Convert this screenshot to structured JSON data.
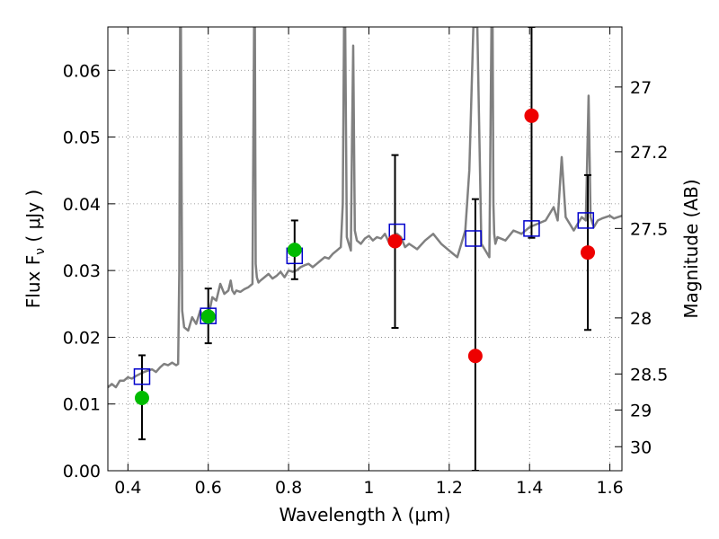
{
  "chart_data": {
    "type": "scatter",
    "xlabel": "Wavelength  λ (μm)",
    "ylabel": "Flux  F",
    "ylabel_sub": "ν",
    "ylabel_unit": " ( μJy )",
    "y2label": "Magnitude (AB)",
    "xlim": [
      0.35,
      1.63
    ],
    "ylim": [
      0.0,
      0.0665
    ],
    "grid": true,
    "x_ticks": [
      0.4,
      0.6,
      0.8,
      1.0,
      1.2,
      1.4,
      1.6
    ],
    "x_tick_labels": [
      "0.4",
      "0.6",
      "0.8",
      "1",
      "1.2",
      "1.4",
      "1.6"
    ],
    "y_ticks": [
      0.0,
      0.01,
      0.02,
      0.03,
      0.04,
      0.05,
      0.06
    ],
    "y_tick_labels": [
      "0.00",
      "0.01",
      "0.02",
      "0.03",
      "0.04",
      "0.05",
      "0.06"
    ],
    "y2_ticks": [
      {
        "label": "27",
        "flux": 0.0575
      },
      {
        "label": "27.2",
        "flux": 0.0478
      },
      {
        "label": "27.5",
        "flux": 0.0363
      },
      {
        "label": "28",
        "flux": 0.0229
      },
      {
        "label": "28.5",
        "flux": 0.0145
      },
      {
        "label": "29",
        "flux": 0.0091
      },
      {
        "label": "30",
        "flux": 0.0036
      }
    ],
    "colors": {
      "spectrum": "#808080",
      "model_marker": "#0000cc",
      "detected": "#00bb00",
      "undetected": "#ee0000",
      "errorbar": "#000000",
      "grid": "#808080"
    },
    "series": [
      {
        "kind": "spectrum",
        "x": [
          0.35,
          0.36,
          0.37,
          0.38,
          0.39,
          0.4,
          0.41,
          0.42,
          0.43,
          0.44,
          0.45,
          0.46,
          0.47,
          0.48,
          0.49,
          0.5,
          0.51,
          0.52,
          0.525,
          0.528,
          0.53,
          0.532,
          0.535,
          0.54,
          0.55,
          0.56,
          0.57,
          0.58,
          0.59,
          0.6,
          0.605,
          0.61,
          0.62,
          0.63,
          0.64,
          0.65,
          0.656,
          0.66,
          0.665,
          0.67,
          0.68,
          0.69,
          0.7,
          0.71,
          0.714,
          0.716,
          0.718,
          0.721,
          0.725,
          0.73,
          0.74,
          0.75,
          0.76,
          0.77,
          0.78,
          0.79,
          0.8,
          0.81,
          0.82,
          0.83,
          0.84,
          0.85,
          0.86,
          0.87,
          0.88,
          0.89,
          0.9,
          0.91,
          0.92,
          0.93,
          0.935,
          0.938,
          0.941,
          0.945,
          0.95,
          0.955,
          0.958,
          0.961,
          0.965,
          0.97,
          0.98,
          0.99,
          1.0,
          1.01,
          1.02,
          1.03,
          1.04,
          1.05,
          1.06,
          1.07,
          1.08,
          1.09,
          1.1,
          1.12,
          1.14,
          1.16,
          1.18,
          1.2,
          1.21,
          1.22,
          1.23,
          1.24,
          1.25,
          1.26,
          1.27,
          1.28,
          1.29,
          1.3,
          1.305,
          1.308,
          1.31,
          1.312,
          1.315,
          1.32,
          1.34,
          1.36,
          1.38,
          1.4,
          1.42,
          1.44,
          1.46,
          1.47,
          1.48,
          1.49,
          1.5,
          1.51,
          1.52,
          1.53,
          1.54,
          1.543,
          1.547,
          1.552,
          1.56,
          1.57,
          1.58,
          1.59,
          1.6,
          1.61,
          1.62,
          1.63
        ],
        "y": [
          0.0125,
          0.013,
          0.0125,
          0.0135,
          0.0135,
          0.014,
          0.0138,
          0.0142,
          0.0145,
          0.0148,
          0.015,
          0.0152,
          0.0148,
          0.0155,
          0.016,
          0.0158,
          0.0162,
          0.0158,
          0.016,
          0.03,
          0.0665,
          0.0665,
          0.024,
          0.0215,
          0.021,
          0.023,
          0.022,
          0.024,
          0.0225,
          0.0232,
          0.0245,
          0.026,
          0.0255,
          0.028,
          0.0265,
          0.027,
          0.0285,
          0.027,
          0.0265,
          0.027,
          0.0268,
          0.0272,
          0.0275,
          0.028,
          0.0665,
          0.0665,
          0.031,
          0.029,
          0.0282,
          0.0285,
          0.029,
          0.0295,
          0.0288,
          0.0292,
          0.0298,
          0.029,
          0.03,
          0.0298,
          0.03,
          0.0305,
          0.0308,
          0.031,
          0.0305,
          0.031,
          0.0315,
          0.032,
          0.0318,
          0.0325,
          0.033,
          0.0335,
          0.04,
          0.0665,
          0.0665,
          0.035,
          0.034,
          0.033,
          0.05,
          0.0637,
          0.036,
          0.0345,
          0.034,
          0.0348,
          0.0352,
          0.0345,
          0.035,
          0.0348,
          0.0355,
          0.0342,
          0.035,
          0.0355,
          0.035,
          0.0335,
          0.034,
          0.0332,
          0.0345,
          0.0355,
          0.034,
          0.033,
          0.0325,
          0.032,
          0.034,
          0.036,
          0.045,
          0.0665,
          0.0665,
          0.034,
          0.033,
          0.032,
          0.0665,
          0.0665,
          0.04,
          0.0355,
          0.034,
          0.035,
          0.0345,
          0.036,
          0.0355,
          0.0365,
          0.037,
          0.0375,
          0.0395,
          0.0375,
          0.047,
          0.038,
          0.037,
          0.036,
          0.037,
          0.038,
          0.0375,
          0.045,
          0.0562,
          0.038,
          0.0365,
          0.0375,
          0.0378,
          0.038,
          0.0382,
          0.0378,
          0.038,
          0.0382
        ]
      },
      {
        "kind": "model",
        "x": [
          0.435,
          0.6,
          0.815,
          1.07,
          1.26,
          1.405,
          1.54
        ],
        "y": [
          0.0141,
          0.0232,
          0.0322,
          0.0358,
          0.0348,
          0.0363,
          0.0375
        ]
      },
      {
        "kind": "observed",
        "x": [
          0.435,
          0.6,
          0.815,
          1.065,
          1.265,
          1.405,
          1.545
        ],
        "y": [
          0.0109,
          0.0231,
          0.0331,
          0.0344,
          0.0172,
          0.0532,
          0.0327
        ],
        "yerr_low": [
          0.0047,
          0.0191,
          0.0287,
          0.0214,
          0.0,
          0.0349,
          0.0211
        ],
        "yerr_high": [
          0.0173,
          0.0273,
          0.0375,
          0.0473,
          0.0407,
          0.0665,
          0.0443
        ],
        "detected": [
          true,
          true,
          true,
          false,
          false,
          false,
          false
        ]
      }
    ]
  }
}
